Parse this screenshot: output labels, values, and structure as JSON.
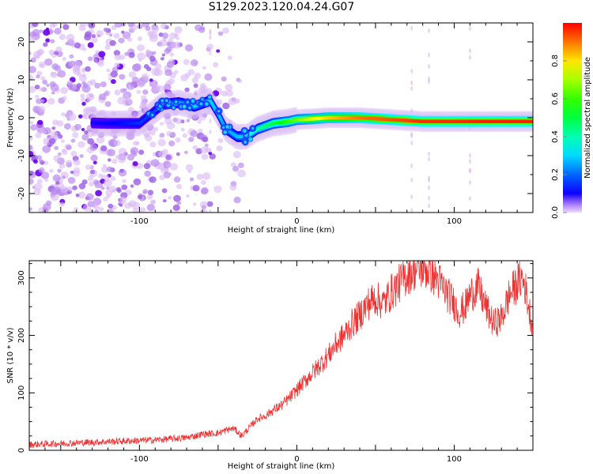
{
  "title": "S129.2023.120.04.24.G07",
  "chart_data": [
    {
      "type": "heatmap",
      "xlabel": "Height of straight line (km)",
      "ylabel": "Frequency (Hz)",
      "xlim": [
        -170,
        150
      ],
      "ylim": [
        -25,
        25
      ],
      "xticks": [
        -100,
        0,
        100
      ],
      "yticks": [
        -20,
        -10,
        0,
        10,
        20
      ],
      "colorbar": {
        "label": "Normalized spectral amplitude",
        "ticks": [
          "0.0",
          "0.2",
          "0.4",
          "0.6",
          "0.8"
        ],
        "range": [
          0,
          1
        ]
      },
      "ridge": {
        "x": [
          -170,
          -120,
          -100,
          -85,
          -75,
          -65,
          -55,
          -50,
          -45,
          -38,
          -32,
          -25,
          -15,
          -5,
          0,
          10,
          20,
          40,
          60,
          80,
          100,
          120,
          150
        ],
        "y": [
          -1,
          -1.5,
          -1.5,
          3.5,
          4,
          3,
          4.5,
          1,
          -3,
          -5,
          -5,
          -3,
          -1.5,
          -1,
          -0.5,
          -0.3,
          0,
          0,
          -0.5,
          -1,
          -1,
          -1,
          -1
        ],
        "amplitude": [
          0.05,
          0.1,
          0.15,
          0.18,
          0.25,
          0.3,
          0.3,
          0.28,
          0.25,
          0.28,
          0.3,
          0.4,
          0.5,
          0.6,
          0.65,
          0.75,
          0.82,
          0.9,
          0.93,
          0.96,
          0.96,
          0.97,
          0.97
        ]
      },
      "noise_region_x": [
        -170,
        -55
      ]
    },
    {
      "type": "line",
      "xlabel": "Height of straight line (km)",
      "ylabel": "SNR (10 * v/v)",
      "xlim": [
        -170,
        150
      ],
      "ylim": [
        0,
        330
      ],
      "xticks": [
        -100,
        0,
        100
      ],
      "yticks": [
        0,
        100,
        200,
        300
      ],
      "series": [
        {
          "color": "#ee3333",
          "x": [
            -170,
            -150,
            -130,
            -110,
            -90,
            -70,
            -60,
            -50,
            -45,
            -40,
            -35,
            -30,
            -25,
            -20,
            -15,
            -10,
            -5,
            0,
            5,
            10,
            15,
            20,
            25,
            30,
            35,
            40,
            45,
            50,
            55,
            60,
            65,
            70,
            75,
            80,
            85,
            90,
            95,
            100,
            103,
            107,
            110,
            115,
            120,
            125,
            130,
            135,
            140,
            143,
            145,
            148,
            150
          ],
          "y": [
            10,
            12,
            14,
            16,
            18,
            22,
            28,
            30,
            35,
            38,
            25,
            40,
            55,
            60,
            70,
            78,
            90,
            105,
            120,
            135,
            150,
            165,
            185,
            200,
            220,
            235,
            255,
            265,
            255,
            275,
            290,
            305,
            315,
            318,
            310,
            295,
            275,
            255,
            240,
            250,
            270,
            285,
            250,
            220,
            230,
            270,
            290,
            300,
            285,
            240,
            215
          ]
        }
      ]
    }
  ]
}
